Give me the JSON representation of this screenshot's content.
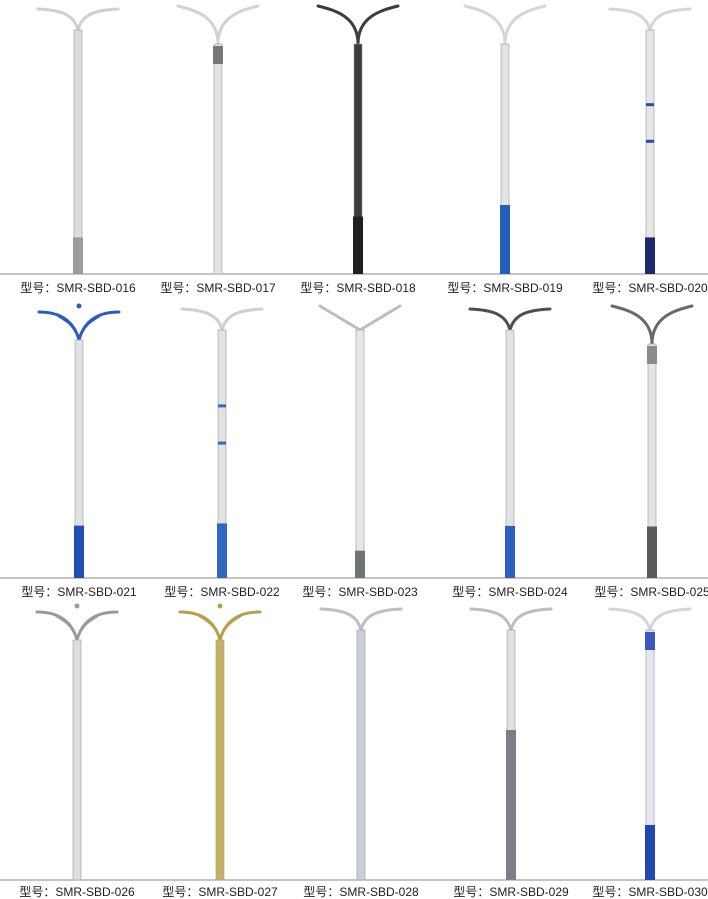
{
  "label_prefix": "型号：",
  "rows": [
    {
      "items": [
        {
          "model": "SMR-SBD-016",
          "pole": "#dcdcdc",
          "base": "#9c9c9c",
          "base_frac": 0.15,
          "arm": "#cfcfcf",
          "arm_style": "flat-y"
        },
        {
          "model": "SMR-SBD-017",
          "pole": "#e2e2e2",
          "base": null,
          "base_frac": 0,
          "arm": "#d2d2d2",
          "arm_style": "tall-y",
          "collar": "#777777"
        },
        {
          "model": "SMR-SBD-018",
          "pole": "#3c3c3c",
          "base": "#1f1f1f",
          "base_frac": 0.25,
          "arm": "#3c3c3c",
          "arm_style": "tall-y"
        },
        {
          "model": "SMR-SBD-019",
          "pole": "#e4e4e4",
          "base": "#1f5fb8",
          "base_frac": 0.3,
          "arm": "#d6d6d6",
          "arm_style": "tall-y"
        },
        {
          "model": "SMR-SBD-020",
          "pole": "#e6e6e6",
          "base": "#1b2a6e",
          "base_frac": 0.15,
          "arm": "#d6d6d6",
          "arm_style": "flat-y",
          "stripes": "#2c4aa0"
        }
      ]
    },
    {
      "items": [
        {
          "model": "SMR-SBD-021",
          "pole": "#e2e2e2",
          "base": "#2150b0",
          "base_frac": 0.22,
          "arm": "#2a5bbf",
          "arm_style": "lotus"
        },
        {
          "model": "SMR-SBD-022",
          "pole": "#e2e2e2",
          "base": "#2e68c0",
          "base_frac": 0.22,
          "arm": "#cfcfcf",
          "arm_style": "flat-y",
          "stripes": "#2e68c0"
        },
        {
          "model": "SMR-SBD-023",
          "pole": "#e6e6e6",
          "base": "#6e746f",
          "base_frac": 0.11,
          "arm": "#bdbdbd",
          "arm_style": "straight-v"
        },
        {
          "model": "SMR-SBD-024",
          "pole": "#e2e2e2",
          "base": "#2c5fc4",
          "base_frac": 0.21,
          "arm": "#4a4f57",
          "arm_style": "flat-y"
        },
        {
          "model": "SMR-SBD-025",
          "pole": "#e4e4e4",
          "base": "#5a5a5a",
          "base_frac": 0.22,
          "arm": "#6a6a6a",
          "arm_style": "tall-y",
          "collar": "#8a8a8a"
        }
      ]
    },
    {
      "items": [
        {
          "model": "SMR-SBD-026",
          "pole": "#dedede",
          "base": null,
          "base_frac": 0,
          "arm": "#9a9a9a",
          "arm_style": "lotus"
        },
        {
          "model": "SMR-SBD-027",
          "pole": "#c8b063",
          "base": null,
          "base_frac": 0,
          "arm": "#b89d4a",
          "arm_style": "lotus"
        },
        {
          "model": "SMR-SBD-028",
          "pole": "#c9cfd8",
          "base": null,
          "base_frac": 0,
          "arm": "#b8c0cc",
          "arm_style": "flat-y"
        },
        {
          "model": "SMR-SBD-029",
          "pole": "#e2e2e2",
          "base": "#7c8084",
          "base_frac": 0.6,
          "arm": "#bdbdbd",
          "arm_style": "flat-y"
        },
        {
          "model": "SMR-SBD-030",
          "pole": "#e6e6f0",
          "base": "#2148b0",
          "base_frac": 0.22,
          "arm": "#d4d4dc",
          "arm_style": "flat-y",
          "collar": "#3a5ac0"
        }
      ]
    }
  ]
}
